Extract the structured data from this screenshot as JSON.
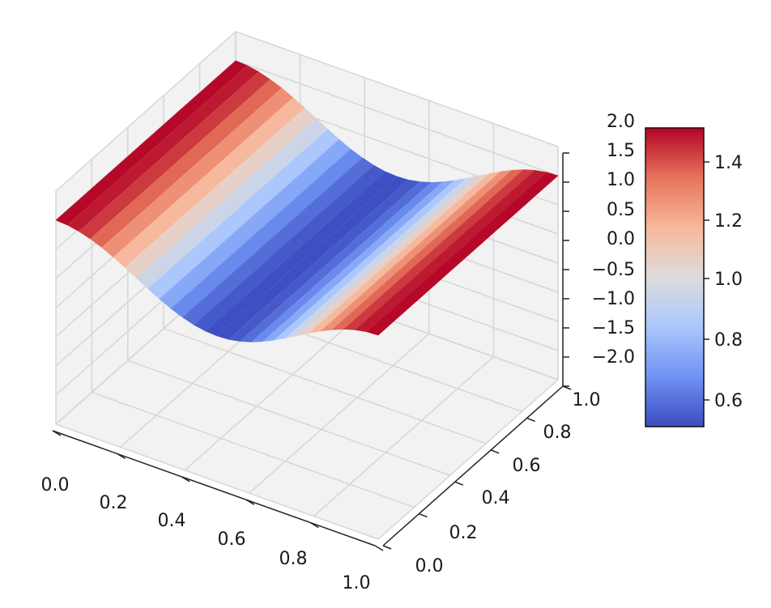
{
  "chart_data": {
    "type": "surface3d",
    "title": "",
    "x_ticks": [
      "0.0",
      "0.2",
      "0.4",
      "0.6",
      "0.8",
      "1.0"
    ],
    "y_ticks": [
      "0.0",
      "0.2",
      "0.4",
      "0.6",
      "0.8",
      "1.0"
    ],
    "z_ticks": [
      "2.0",
      "1.5",
      "1.0",
      "0.5",
      "0.0",
      "−0.5",
      "−1.0",
      "−1.5",
      "−2.0"
    ],
    "z_lim": [
      -2,
      2
    ],
    "colorbar": {
      "ticks": [
        "1.4",
        "1.2",
        "1.0",
        "0.8",
        "0.6"
      ],
      "range": [
        0.5,
        1.5
      ],
      "colormap": "coolwarm",
      "colors": [
        "#3b4cc0",
        "#6f92f3",
        "#aac7fd",
        "#dddcdc",
        "#f7b89c",
        "#e7745b",
        "#b40426"
      ]
    },
    "surface_peak_value": 1.5,
    "surface_valley_value": 0.5,
    "grid": true,
    "pane_color": "#f2f2f2",
    "grid_color": "#d6d6d6"
  }
}
